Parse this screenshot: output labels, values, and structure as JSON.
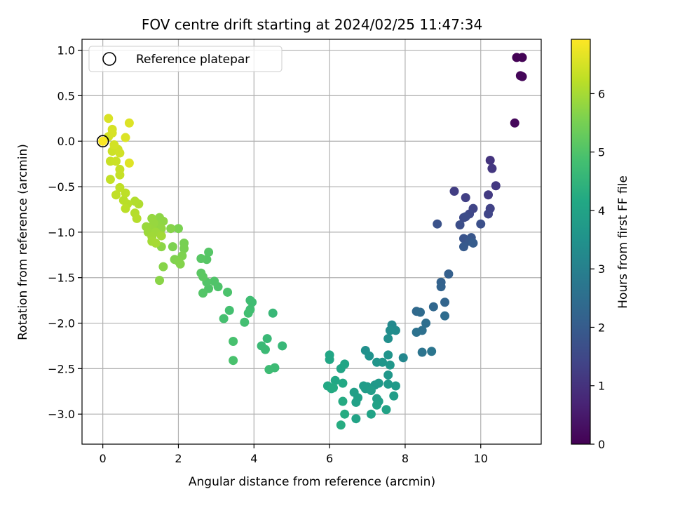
{
  "chart_data": {
    "type": "scatter",
    "title": "FOV centre drift starting at 2024/02/25 11:47:34",
    "xlabel": "Angular distance from reference (arcmin)",
    "ylabel": "Rotation from reference (arcmin)",
    "xlim": [
      -0.55,
      11.6
    ],
    "ylim": [
      -3.33,
      1.12
    ],
    "xticks": [
      0,
      2,
      4,
      6,
      8,
      10
    ],
    "yticks": [
      -3.0,
      -2.5,
      -2.0,
      -1.5,
      -1.0,
      -0.5,
      0.0,
      0.5,
      1.0
    ],
    "xtick_labels": [
      "0",
      "2",
      "4",
      "6",
      "8",
      "10"
    ],
    "ytick_labels": [
      "−3.0",
      "−2.5",
      "−2.0",
      "−1.5",
      "−1.0",
      "−0.5",
      "0.0",
      "0.5",
      "1.0"
    ],
    "grid": true,
    "colormap": "viridis",
    "colorbar": {
      "label": "Hours from first FF file",
      "range": [
        0,
        6.93
      ],
      "ticks": [
        0,
        1,
        2,
        3,
        4,
        5,
        6
      ],
      "tick_labels": [
        "0",
        "1",
        "2",
        "3",
        "4",
        "5",
        "6"
      ]
    },
    "legend": {
      "position": "top-left",
      "entries": [
        {
          "label": "Reference platepar",
          "marker": "open-circle"
        }
      ]
    },
    "reference_point": {
      "x": 0,
      "y": 0
    },
    "points": [
      {
        "x": 10.95,
        "y": 0.92,
        "c": 0.02
      },
      {
        "x": 11.1,
        "y": 0.92,
        "c": 0.05
      },
      {
        "x": 11.05,
        "y": 0.72,
        "c": 0.08
      },
      {
        "x": 11.1,
        "y": 0.71,
        "c": 0.11
      },
      {
        "x": 10.9,
        "y": 0.2,
        "c": 0.14
      },
      {
        "x": 10.25,
        "y": -0.21,
        "c": 1.05
      },
      {
        "x": 10.3,
        "y": -0.3,
        "c": 1.1
      },
      {
        "x": 10.4,
        "y": -0.49,
        "c": 1.15
      },
      {
        "x": 10.2,
        "y": -0.59,
        "c": 1.2
      },
      {
        "x": 9.3,
        "y": -0.55,
        "c": 1.25
      },
      {
        "x": 9.6,
        "y": -0.62,
        "c": 1.3
      },
      {
        "x": 10.25,
        "y": -0.74,
        "c": 1.35
      },
      {
        "x": 9.8,
        "y": -0.74,
        "c": 1.4
      },
      {
        "x": 10.2,
        "y": -0.8,
        "c": 1.45
      },
      {
        "x": 9.7,
        "y": -0.8,
        "c": 1.5
      },
      {
        "x": 9.55,
        "y": -0.84,
        "c": 1.55
      },
      {
        "x": 9.6,
        "y": -0.83,
        "c": 1.6
      },
      {
        "x": 9.45,
        "y": -0.92,
        "c": 1.65
      },
      {
        "x": 10.0,
        "y": -0.91,
        "c": 1.7
      },
      {
        "x": 8.85,
        "y": -0.91,
        "c": 1.75
      },
      {
        "x": 9.55,
        "y": -1.07,
        "c": 1.8
      },
      {
        "x": 9.75,
        "y": -1.06,
        "c": 1.85
      },
      {
        "x": 9.7,
        "y": -1.1,
        "c": 1.9
      },
      {
        "x": 9.55,
        "y": -1.16,
        "c": 1.95
      },
      {
        "x": 9.8,
        "y": -1.12,
        "c": 2.0
      },
      {
        "x": 9.15,
        "y": -1.46,
        "c": 2.1
      },
      {
        "x": 8.95,
        "y": -1.55,
        "c": 2.15
      },
      {
        "x": 8.95,
        "y": -1.6,
        "c": 2.2
      },
      {
        "x": 9.05,
        "y": -1.77,
        "c": 2.25
      },
      {
        "x": 8.75,
        "y": -1.82,
        "c": 2.3
      },
      {
        "x": 8.3,
        "y": -1.87,
        "c": 2.35
      },
      {
        "x": 8.4,
        "y": -1.88,
        "c": 2.4
      },
      {
        "x": 9.05,
        "y": -1.92,
        "c": 2.45
      },
      {
        "x": 8.55,
        "y": -2.0,
        "c": 2.5
      },
      {
        "x": 8.45,
        "y": -2.08,
        "c": 2.55
      },
      {
        "x": 8.3,
        "y": -2.1,
        "c": 2.6
      },
      {
        "x": 8.45,
        "y": -2.32,
        "c": 2.65
      },
      {
        "x": 8.7,
        "y": -2.31,
        "c": 2.7
      },
      {
        "x": 7.95,
        "y": -2.38,
        "c": 3.2
      },
      {
        "x": 7.65,
        "y": -2.02,
        "c": 3.25
      },
      {
        "x": 7.75,
        "y": -2.08,
        "c": 3.3
      },
      {
        "x": 7.6,
        "y": -2.08,
        "c": 3.35
      },
      {
        "x": 7.55,
        "y": -2.17,
        "c": 3.4
      },
      {
        "x": 6.95,
        "y": -2.3,
        "c": 3.45
      },
      {
        "x": 7.05,
        "y": -2.36,
        "c": 3.5
      },
      {
        "x": 7.55,
        "y": -2.35,
        "c": 3.55
      },
      {
        "x": 7.25,
        "y": -2.43,
        "c": 3.6
      },
      {
        "x": 7.4,
        "y": -2.43,
        "c": 3.62
      },
      {
        "x": 7.6,
        "y": -2.46,
        "c": 3.64
      },
      {
        "x": 7.55,
        "y": -2.57,
        "c": 3.66
      },
      {
        "x": 7.2,
        "y": -2.68,
        "c": 3.68
      },
      {
        "x": 7.3,
        "y": -2.66,
        "c": 3.7
      },
      {
        "x": 7.55,
        "y": -2.67,
        "c": 3.72
      },
      {
        "x": 7.75,
        "y": -2.69,
        "c": 3.74
      },
      {
        "x": 7.0,
        "y": -2.7,
        "c": 3.76
      },
      {
        "x": 6.95,
        "y": -2.72,
        "c": 3.78
      },
      {
        "x": 6.9,
        "y": -2.69,
        "c": 3.8
      },
      {
        "x": 7.1,
        "y": -2.74,
        "c": 3.82
      },
      {
        "x": 7.7,
        "y": -2.8,
        "c": 3.84
      },
      {
        "x": 7.25,
        "y": -2.83,
        "c": 3.86
      },
      {
        "x": 7.3,
        "y": -2.86,
        "c": 3.88
      },
      {
        "x": 6.65,
        "y": -2.76,
        "c": 3.9
      },
      {
        "x": 6.75,
        "y": -2.82,
        "c": 3.92
      },
      {
        "x": 6.7,
        "y": -2.87,
        "c": 3.94
      },
      {
        "x": 7.25,
        "y": -2.9,
        "c": 3.96
      },
      {
        "x": 7.5,
        "y": -2.95,
        "c": 3.98
      },
      {
        "x": 7.1,
        "y": -3.0,
        "c": 4.0
      },
      {
        "x": 6.7,
        "y": -3.05,
        "c": 4.02
      },
      {
        "x": 6.3,
        "y": -2.5,
        "c": 4.05
      },
      {
        "x": 6.4,
        "y": -2.45,
        "c": 4.07
      },
      {
        "x": 6.0,
        "y": -2.4,
        "c": 4.09
      },
      {
        "x": 6.0,
        "y": -2.35,
        "c": 4.11
      },
      {
        "x": 6.15,
        "y": -2.63,
        "c": 4.13
      },
      {
        "x": 6.35,
        "y": -2.66,
        "c": 4.15
      },
      {
        "x": 5.95,
        "y": -2.69,
        "c": 4.17
      },
      {
        "x": 6.05,
        "y": -2.72,
        "c": 4.19
      },
      {
        "x": 6.1,
        "y": -2.71,
        "c": 4.21
      },
      {
        "x": 6.35,
        "y": -2.86,
        "c": 4.23
      },
      {
        "x": 6.4,
        "y": -3.0,
        "c": 4.25
      },
      {
        "x": 6.3,
        "y": -3.12,
        "c": 4.27
      },
      {
        "x": 4.75,
        "y": -2.25,
        "c": 4.6
      },
      {
        "x": 4.5,
        "y": -1.89,
        "c": 4.62
      },
      {
        "x": 4.35,
        "y": -2.17,
        "c": 4.64
      },
      {
        "x": 4.2,
        "y": -2.25,
        "c": 4.66
      },
      {
        "x": 4.3,
        "y": -2.29,
        "c": 4.68
      },
      {
        "x": 4.55,
        "y": -2.49,
        "c": 4.7
      },
      {
        "x": 4.4,
        "y": -2.51,
        "c": 4.72
      },
      {
        "x": 3.95,
        "y": -1.77,
        "c": 4.75
      },
      {
        "x": 3.9,
        "y": -1.75,
        "c": 4.77
      },
      {
        "x": 3.9,
        "y": -1.85,
        "c": 4.79
      },
      {
        "x": 3.85,
        "y": -1.89,
        "c": 4.81
      },
      {
        "x": 3.75,
        "y": -1.99,
        "c": 4.83
      },
      {
        "x": 3.35,
        "y": -1.86,
        "c": 4.85
      },
      {
        "x": 3.2,
        "y": -1.95,
        "c": 4.87
      },
      {
        "x": 3.45,
        "y": -2.2,
        "c": 4.89
      },
      {
        "x": 3.45,
        "y": -2.41,
        "c": 4.91
      },
      {
        "x": 3.3,
        "y": -1.66,
        "c": 4.95
      },
      {
        "x": 3.05,
        "y": -1.6,
        "c": 4.98
      },
      {
        "x": 2.95,
        "y": -1.54,
        "c": 5.0
      },
      {
        "x": 2.8,
        "y": -1.62,
        "c": 5.02
      },
      {
        "x": 2.75,
        "y": -1.55,
        "c": 5.04
      },
      {
        "x": 2.65,
        "y": -1.67,
        "c": 5.06
      },
      {
        "x": 2.8,
        "y": -1.22,
        "c": 5.08
      },
      {
        "x": 2.75,
        "y": -1.3,
        "c": 5.1
      },
      {
        "x": 2.6,
        "y": -1.29,
        "c": 5.12
      },
      {
        "x": 2.6,
        "y": -1.45,
        "c": 5.14
      },
      {
        "x": 2.65,
        "y": -1.49,
        "c": 5.16
      },
      {
        "x": 2.15,
        "y": -1.12,
        "c": 5.5
      },
      {
        "x": 2.15,
        "y": -1.18,
        "c": 5.52
      },
      {
        "x": 2.0,
        "y": -0.96,
        "c": 5.54
      },
      {
        "x": 1.85,
        "y": -1.16,
        "c": 5.56
      },
      {
        "x": 2.1,
        "y": -1.26,
        "c": 5.58
      },
      {
        "x": 1.9,
        "y": -1.3,
        "c": 5.6
      },
      {
        "x": 2.0,
        "y": -1.32,
        "c": 5.62
      },
      {
        "x": 2.05,
        "y": -1.35,
        "c": 5.64
      },
      {
        "x": 1.8,
        "y": -0.96,
        "c": 5.66
      },
      {
        "x": 1.6,
        "y": -1.38,
        "c": 5.68
      },
      {
        "x": 1.5,
        "y": -1.53,
        "c": 5.7
      },
      {
        "x": 1.55,
        "y": -1.16,
        "c": 5.72
      },
      {
        "x": 1.5,
        "y": -0.84,
        "c": 5.74
      },
      {
        "x": 1.6,
        "y": -0.88,
        "c": 5.76
      },
      {
        "x": 1.45,
        "y": -0.92,
        "c": 5.78
      },
      {
        "x": 1.55,
        "y": -0.96,
        "c": 5.8
      },
      {
        "x": 1.3,
        "y": -0.85,
        "c": 5.82
      },
      {
        "x": 1.35,
        "y": -0.9,
        "c": 5.84
      },
      {
        "x": 1.25,
        "y": -0.96,
        "c": 5.86
      },
      {
        "x": 1.15,
        "y": -0.94,
        "c": 5.88
      },
      {
        "x": 1.2,
        "y": -1.0,
        "c": 5.9
      },
      {
        "x": 1.4,
        "y": -1.0,
        "c": 5.92
      },
      {
        "x": 1.3,
        "y": -1.05,
        "c": 5.94
      },
      {
        "x": 1.55,
        "y": -1.04,
        "c": 5.96
      },
      {
        "x": 1.3,
        "y": -1.1,
        "c": 5.98
      },
      {
        "x": 1.4,
        "y": -1.12,
        "c": 6.0
      },
      {
        "x": 0.95,
        "y": -0.69,
        "c": 6.1
      },
      {
        "x": 0.85,
        "y": -0.66,
        "c": 6.12
      },
      {
        "x": 0.85,
        "y": -0.79,
        "c": 6.14
      },
      {
        "x": 0.9,
        "y": -0.85,
        "c": 6.16
      },
      {
        "x": 0.65,
        "y": -0.69,
        "c": 6.18
      },
      {
        "x": 0.55,
        "y": -0.65,
        "c": 6.2
      },
      {
        "x": 0.6,
        "y": -0.74,
        "c": 6.22
      },
      {
        "x": 0.6,
        "y": -0.57,
        "c": 6.24
      },
      {
        "x": 0.45,
        "y": -0.51,
        "c": 6.26
      },
      {
        "x": 0.35,
        "y": -0.59,
        "c": 6.28
      },
      {
        "x": 0.2,
        "y": -0.42,
        "c": 6.3
      },
      {
        "x": 0.45,
        "y": -0.37,
        "c": 6.32
      },
      {
        "x": 0.45,
        "y": -0.31,
        "c": 6.34
      },
      {
        "x": 0.2,
        "y": -0.22,
        "c": 6.36
      },
      {
        "x": 0.35,
        "y": -0.22,
        "c": 6.38
      },
      {
        "x": 0.25,
        "y": -0.11,
        "c": 6.4
      },
      {
        "x": 0.4,
        "y": -0.09,
        "c": 6.42
      },
      {
        "x": 0.45,
        "y": -0.13,
        "c": 6.44
      },
      {
        "x": 0.3,
        "y": -0.04,
        "c": 6.46
      },
      {
        "x": 0.15,
        "y": 0.05,
        "c": 6.48
      },
      {
        "x": 0.25,
        "y": 0.13,
        "c": 6.5
      },
      {
        "x": 0.25,
        "y": 0.09,
        "c": 6.52
      },
      {
        "x": 0.15,
        "y": 0.25,
        "c": 6.54
      },
      {
        "x": 0.6,
        "y": 0.04,
        "c": 6.56
      },
      {
        "x": 0.7,
        "y": 0.2,
        "c": 6.58
      },
      {
        "x": 0.7,
        "y": -0.24,
        "c": 6.6
      },
      {
        "x": 0.0,
        "y": 0.0,
        "c": 6.9
      }
    ]
  }
}
